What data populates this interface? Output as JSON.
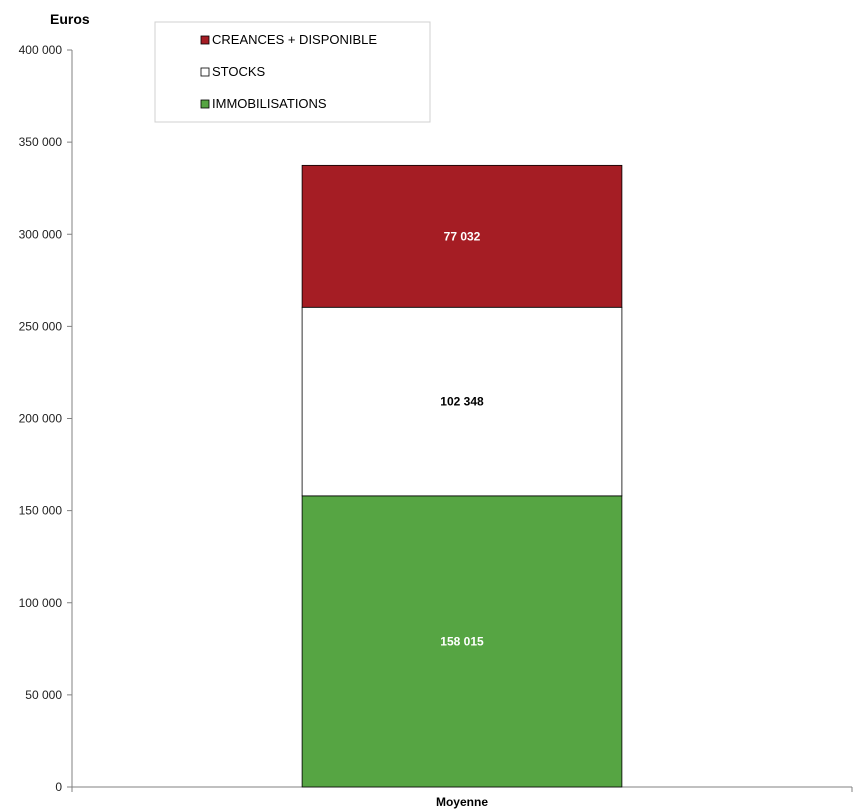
{
  "chart_data": {
    "type": "bar",
    "stacked": true,
    "ylabel": "Euros",
    "xlabel": "",
    "categories": [
      "Moyenne"
    ],
    "ylim": [
      0,
      400000
    ],
    "yticks": [
      0,
      50000,
      100000,
      150000,
      200000,
      250000,
      300000,
      350000,
      400000
    ],
    "ytick_labels": [
      "0",
      "50 000",
      "100 000",
      "150 000",
      "200 000",
      "250 000",
      "300 000",
      "350 000",
      "400 000"
    ],
    "grid": false,
    "legend_position": "top-left",
    "series": [
      {
        "name": "IMMOBILISATIONS",
        "values": [
          158015
        ],
        "value_labels": [
          "158 015"
        ],
        "color": "#56a543",
        "label_color": "#ffffff"
      },
      {
        "name": "STOCKS",
        "values": [
          102348
        ],
        "value_labels": [
          "102 348"
        ],
        "color": "#ffffff",
        "label_color": "#000000"
      },
      {
        "name": "CREANCES + DISPONIBLE",
        "values": [
          77032
        ],
        "value_labels": [
          "77 032"
        ],
        "color": "#a51d24",
        "label_color": "#ffffff"
      }
    ],
    "legend_order": [
      "CREANCES + DISPONIBLE",
      "STOCKS",
      "IMMOBILISATIONS"
    ]
  }
}
